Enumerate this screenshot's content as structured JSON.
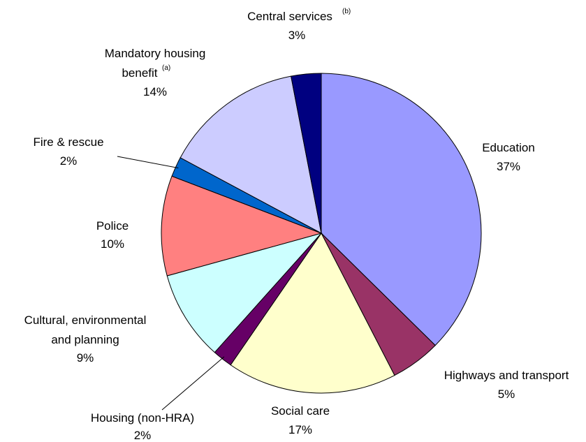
{
  "chart_data": {
    "type": "pie",
    "slices": [
      {
        "label": "Education",
        "value": 37,
        "pct_label": "37%",
        "color": "#9999ff"
      },
      {
        "label": "Highways and transport",
        "value": 5,
        "pct_label": "5%",
        "color": "#993366"
      },
      {
        "label": "Social care",
        "value": 17,
        "pct_label": "17%",
        "color": "#ffffcc"
      },
      {
        "label": "Housing (non-HRA)",
        "value": 2,
        "pct_label": "2%",
        "color": "#660066"
      },
      {
        "label": "Cultural, environmental and planning",
        "value": 9,
        "pct_label": "9%",
        "color": "#ccffff"
      },
      {
        "label": "Police",
        "value": 10,
        "pct_label": "10%",
        "color": "#ff8080"
      },
      {
        "label": "Fire & rescue",
        "value": 2,
        "pct_label": "2%",
        "color": "#0066cc"
      },
      {
        "label": "Mandatory housing benefit",
        "value": 14,
        "pct_label": "14%",
        "color": "#ccccff",
        "note": "(a)"
      },
      {
        "label": "Central services",
        "value": 3,
        "pct_label": "3%",
        "color": "#000080",
        "note": "(b)"
      }
    ]
  }
}
